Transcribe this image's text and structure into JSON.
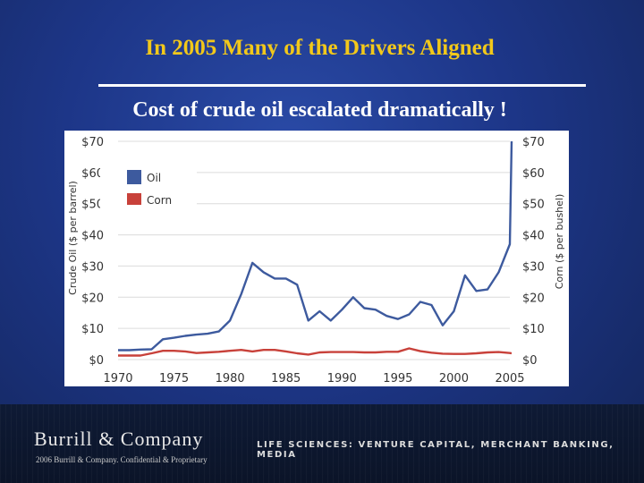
{
  "slide": {
    "title": "In 2005 Many of the Drivers Aligned",
    "subtitle": "Cost of crude oil escalated dramatically !"
  },
  "footer": {
    "brand": "Burrill & Company",
    "tagline": "LIFE SCIENCES: VENTURE CAPITAL, MERCHANT BANKING, MEDIA",
    "copyright": "2006 Burrill & Company. Confidential & Proprietary"
  },
  "colors": {
    "title": "#f2c81a",
    "oil": "#3d5a9e",
    "corn": "#c8413a",
    "gridline": "#dcdcdc"
  },
  "chart_data": {
    "type": "line",
    "xlabel": "",
    "ylabel": "Crude Oil ($ per barrel)",
    "y2label": "Corn ($ per bushel)",
    "ylim": [
      0,
      70
    ],
    "y2lim": [
      0,
      70
    ],
    "grid": true,
    "legend": "top-left",
    "x_ticks": [
      "1970",
      "1975",
      "1980",
      "1985",
      "1990",
      "1995",
      "2000",
      "2005"
    ],
    "y_ticks": [
      "$0",
      "$10",
      "$20",
      "$30",
      "$40",
      "$50",
      "$60",
      "$70"
    ],
    "y2_ticks": [
      "$0",
      "$10",
      "$20",
      "$30",
      "$40",
      "$50",
      "$60",
      "$70"
    ],
    "x": [
      1970,
      1971,
      1972,
      1973,
      1974,
      1975,
      1976,
      1977,
      1978,
      1979,
      1980,
      1981,
      1982,
      1983,
      1984,
      1985,
      1986,
      1987,
      1988,
      1989,
      1990,
      1991,
      1992,
      1993,
      1994,
      1995,
      1996,
      1997,
      1998,
      1999,
      2000,
      2001,
      2002,
      2003,
      2004,
      2005,
      2006
    ],
    "series": [
      {
        "name": "Oil",
        "values": [
          3,
          3,
          3.2,
          3.3,
          6.5,
          7,
          7.6,
          8,
          8.3,
          9,
          12.5,
          21,
          31,
          28,
          26,
          26,
          24,
          12.5,
          15.5,
          12.5,
          16,
          20,
          16.5,
          16,
          14,
          13,
          14.5,
          18.5,
          17.5,
          11,
          15.5,
          27,
          22,
          22.5,
          28,
          37,
          70
        ]
      },
      {
        "name": "Corn",
        "values": [
          1.3,
          1.3,
          1.3,
          2,
          2.8,
          2.8,
          2.6,
          2.1,
          2.3,
          2.5,
          2.8,
          3.1,
          2.6,
          3.1,
          3.1,
          2.6,
          2,
          1.6,
          2.3,
          2.4,
          2.4,
          2.4,
          2.3,
          2.3,
          2.5,
          2.5,
          3.6,
          2.7,
          2.2,
          1.9,
          1.8,
          1.8,
          2,
          2.3,
          2.4,
          2.1,
          2
        ]
      }
    ]
  }
}
